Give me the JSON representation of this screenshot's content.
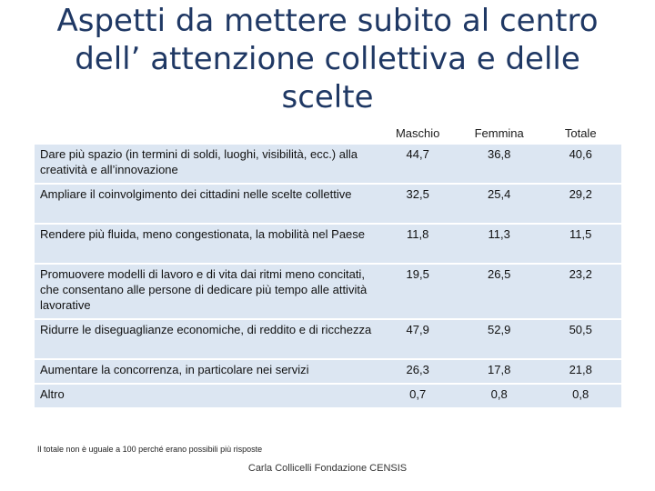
{
  "title": {
    "line1": "Aspetti da mettere subito al centro",
    "line2": "dell’ attenzione collettiva e delle",
    "line3": "scelte"
  },
  "table": {
    "columns": [
      "Maschio",
      "Femmina",
      "Totale"
    ],
    "rows": [
      {
        "label": "Dare più spazio (in termini di soldi, luoghi, visibilità, ecc.) alla creatività e all’innovazione",
        "maschio": "44,7",
        "femmina": "36,8",
        "totale": "40,6"
      },
      {
        "label": "Ampliare il coinvolgimento dei cittadini nelle scelte collettive",
        "maschio": "32,5",
        "femmina": "25,4",
        "totale": "29,2"
      },
      {
        "label": "Rendere più fluida, meno congestionata, la mobilità nel Paese",
        "maschio": "11,8",
        "femmina": "11,3",
        "totale": "11,5"
      },
      {
        "label": "Promuovere modelli di lavoro e di vita dai ritmi meno concitati, che consentano alle persone di dedicare più tempo alle attività lavorative",
        "maschio": "19,5",
        "femmina": "26,5",
        "totale": "23,2"
      },
      {
        "label": "Ridurre le diseguaglianze economiche, di reddito e di ricchezza",
        "maschio": "47,9",
        "femmina": "52,9",
        "totale": "50,5"
      },
      {
        "label": "Aumentare la concorrenza, in particolare nei servizi",
        "maschio": "26,3",
        "femmina": "17,8",
        "totale": "21,8"
      },
      {
        "label": "Altro",
        "maschio": "0,7",
        "femmina": "0,8",
        "totale": "0,8"
      }
    ]
  },
  "note": "Il totale non è uguale a 100 perché erano possibili più risposte",
  "footer": "Carla Collicelli Fondazione CENSIS",
  "colors": {
    "title": "#1f3864",
    "row_background": "#dce6f2"
  }
}
